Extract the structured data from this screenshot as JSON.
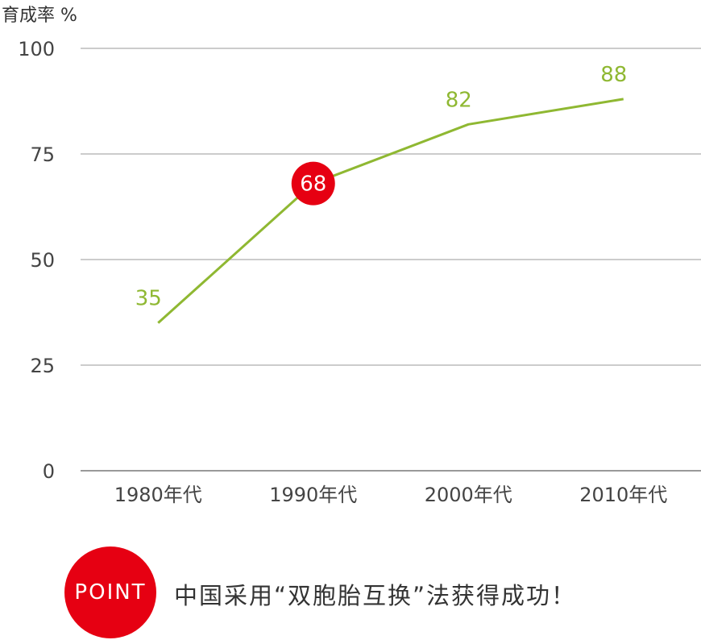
{
  "chart_data": {
    "type": "line",
    "ylabel": "育成率 %",
    "categories": [
      "1980年代",
      "1990年代",
      "2000年代",
      "2010年代"
    ],
    "values": [
      35,
      68,
      82,
      88
    ],
    "data_labels": [
      "35",
      "68",
      "82",
      "88"
    ],
    "highlight_index": 1,
    "ylim": [
      0,
      100
    ],
    "yticks": [
      "0",
      "25",
      "50",
      "75",
      "100"
    ],
    "grid": true,
    "line_color": "#8fb832",
    "highlight_color": "#e60012",
    "grid_color": "#bbbbbb"
  },
  "point": {
    "badge": "POINT",
    "text": "中国采用“双胞胎互换”法获得成功！"
  }
}
